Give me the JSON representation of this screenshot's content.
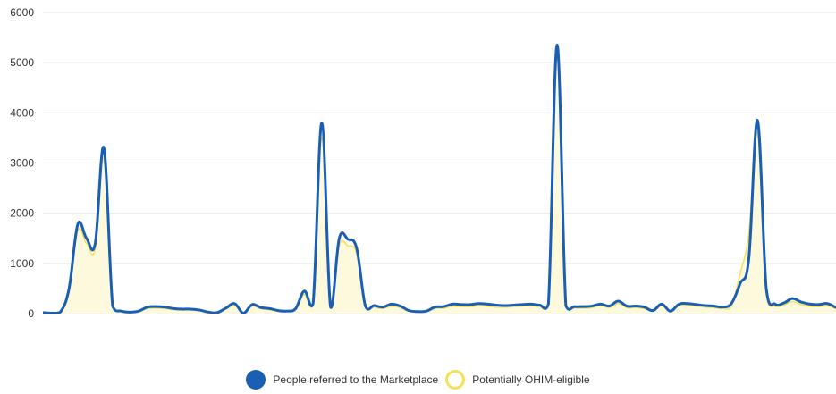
{
  "chart_data": {
    "type": "area",
    "ylim": [
      0,
      6000
    ],
    "y_ticks": [
      0,
      1000,
      2000,
      3000,
      4000,
      5000,
      6000
    ],
    "x_labels_shown": false,
    "grid": "horizontal",
    "legend_position": "bottom",
    "series": [
      {
        "name": "People referred to the Marketplace",
        "color": "#1a5fb4",
        "style": "line",
        "values": [
          20,
          10,
          30,
          500,
          1780,
          1500,
          1400,
          3300,
          150,
          50,
          30,
          50,
          130,
          140,
          130,
          100,
          90,
          90,
          70,
          30,
          20,
          110,
          200,
          10,
          180,
          120,
          100,
          60,
          50,
          100,
          450,
          200,
          3800,
          130,
          1500,
          1480,
          1300,
          150,
          160,
          130,
          190,
          150,
          60,
          40,
          50,
          130,
          140,
          190,
          180,
          180,
          200,
          190,
          170,
          160,
          170,
          180,
          190,
          170,
          190,
          5350,
          160,
          140,
          140,
          150,
          190,
          150,
          250,
          150,
          150,
          130,
          60,
          190,
          50,
          190,
          200,
          180,
          160,
          150,
          130,
          200,
          600,
          1100,
          3850,
          500,
          190,
          210,
          300,
          230,
          190,
          180,
          200,
          120
        ]
      },
      {
        "name": "Potentially OHIM-eligible",
        "color": "#f5e05a",
        "fill": "#fdf9dc",
        "style": "area",
        "values": [
          15,
          8,
          25,
          450,
          1650,
          1400,
          1300,
          3100,
          120,
          40,
          25,
          40,
          100,
          110,
          100,
          80,
          70,
          70,
          55,
          25,
          15,
          90,
          160,
          8,
          150,
          100,
          80,
          50,
          40,
          80,
          380,
          160,
          3500,
          110,
          1350,
          1350,
          1200,
          120,
          130,
          100,
          150,
          120,
          50,
          30,
          40,
          100,
          110,
          150,
          140,
          140,
          160,
          150,
          130,
          130,
          140,
          150,
          160,
          140,
          160,
          5100,
          130,
          110,
          110,
          120,
          160,
          120,
          200,
          120,
          120,
          100,
          50,
          160,
          40,
          160,
          170,
          150,
          130,
          120,
          100,
          160,
          800,
          1600,
          3600,
          400,
          150,
          170,
          240,
          180,
          150,
          140,
          160,
          100
        ]
      }
    ]
  }
}
